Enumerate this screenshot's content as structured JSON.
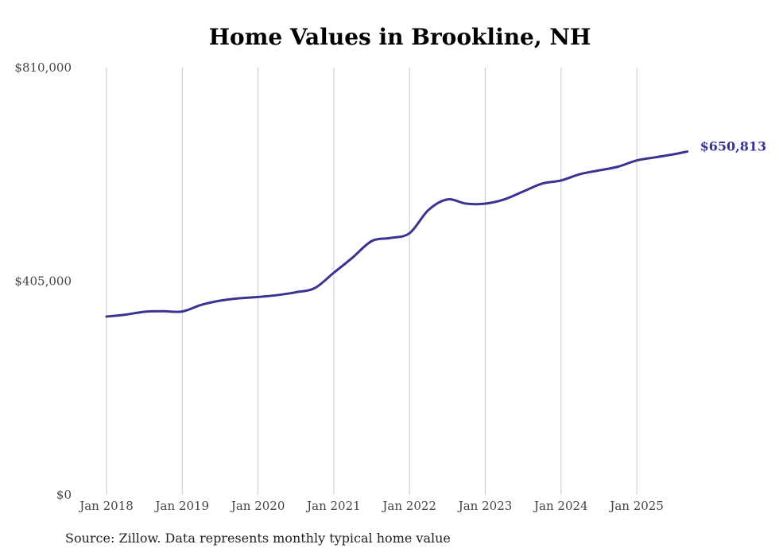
{
  "chart_data": {
    "type": "line",
    "title": "Home Values in Brookline, NH",
    "xlabel": "",
    "ylabel": "",
    "ylim": [
      0,
      810000
    ],
    "yticks": [
      0,
      405000,
      810000
    ],
    "ytick_labels": [
      "$0",
      "$405,000",
      "$810,000"
    ],
    "xtick_labels": [
      "Jan 2018",
      "Jan 2019",
      "Jan 2020",
      "Jan 2021",
      "Jan 2022",
      "Jan 2023",
      "Jan 2024",
      "Jan 2025"
    ],
    "grid": "vertical",
    "legend": "none",
    "series": [
      {
        "name": "Typical home value",
        "color": "#3a3391",
        "x": [
          "2018-01",
          "2018-04",
          "2018-07",
          "2018-10",
          "2019-01",
          "2019-04",
          "2019-07",
          "2019-10",
          "2020-01",
          "2020-04",
          "2020-07",
          "2020-10",
          "2021-01",
          "2021-04",
          "2021-07",
          "2021-10",
          "2022-01",
          "2022-04",
          "2022-07",
          "2022-10",
          "2023-01",
          "2023-04",
          "2023-07",
          "2023-10",
          "2024-01",
          "2024-04",
          "2024-07",
          "2024-10",
          "2025-01",
          "2025-04",
          "2025-07",
          "2025-09"
        ],
        "values": [
          337900,
          341500,
          347000,
          348000,
          347500,
          360000,
          368000,
          372500,
          375000,
          378500,
          384000,
          392000,
          421000,
          450000,
          481000,
          487000,
          496000,
          540000,
          560000,
          552000,
          552000,
          560000,
          575000,
          590000,
          596000,
          608000,
          615000,
          622000,
          634000,
          640000,
          646000,
          650813
        ]
      }
    ],
    "annotations": [
      {
        "text": "$650,813",
        "target": "last point"
      }
    ]
  },
  "chart": {
    "title": "Home Values in Brookline, NH",
    "end_label": "$650,813",
    "source": "Source: Zillow. Data represents monthly typical home value"
  }
}
